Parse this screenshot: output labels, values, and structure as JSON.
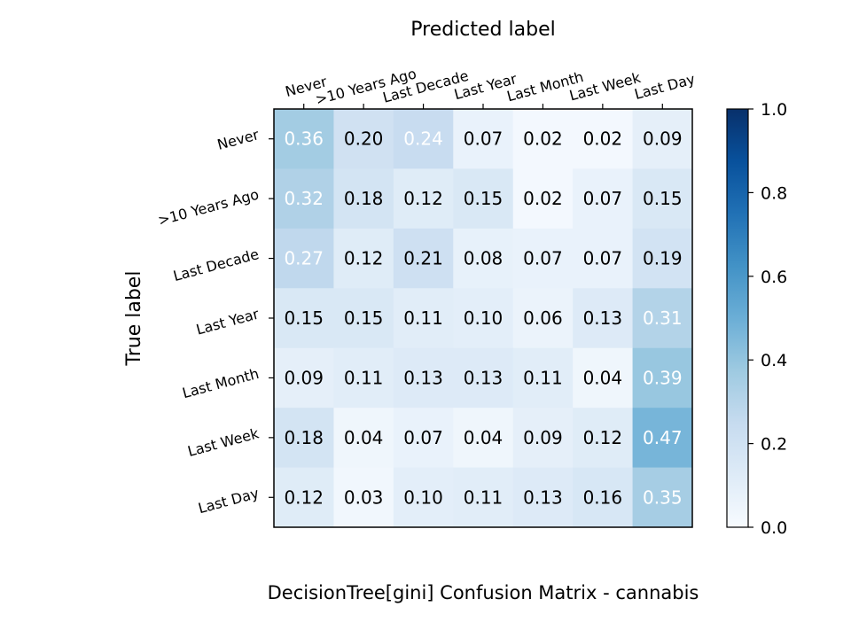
{
  "chart_data": {
    "type": "heatmap",
    "title": "DecisionTree[gini]  Confusion Matrix - cannabis",
    "xlabel": "Predicted label",
    "ylabel": "True label",
    "x_categories": [
      "Never",
      ">10 Years Ago",
      "Last Decade",
      "Last Year",
      "Last Month",
      "Last Week",
      "Last Day"
    ],
    "y_categories": [
      "Never",
      ">10 Years Ago",
      "Last Decade",
      "Last Year",
      "Last Month",
      "Last Week",
      "Last Day"
    ],
    "values": [
      [
        0.36,
        0.2,
        0.24,
        0.07,
        0.02,
        0.02,
        0.09
      ],
      [
        0.32,
        0.18,
        0.12,
        0.15,
        0.02,
        0.07,
        0.15
      ],
      [
        0.27,
        0.12,
        0.21,
        0.08,
        0.07,
        0.07,
        0.19
      ],
      [
        0.15,
        0.15,
        0.11,
        0.1,
        0.06,
        0.13,
        0.31
      ],
      [
        0.09,
        0.11,
        0.13,
        0.13,
        0.11,
        0.04,
        0.39
      ],
      [
        0.18,
        0.04,
        0.07,
        0.04,
        0.09,
        0.12,
        0.47
      ],
      [
        0.12,
        0.03,
        0.1,
        0.11,
        0.13,
        0.16,
        0.35
      ]
    ],
    "colorbar_range": [
      0.0,
      1.0
    ],
    "colorbar_ticks": [
      "0.0",
      "0.2",
      "0.4",
      "0.6",
      "0.8",
      "1.0"
    ],
    "colormap": [
      "#f7fbff",
      "#deebf7",
      "#c6dbef",
      "#9ecae1",
      "#6baed6",
      "#4292c6",
      "#2171b5",
      "#08519c",
      "#08306b"
    ],
    "text_threshold": 0.235
  }
}
